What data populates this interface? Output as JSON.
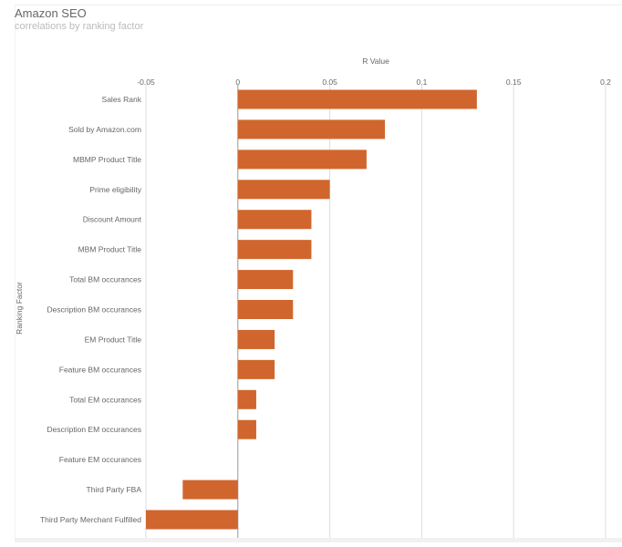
{
  "chart_data": {
    "type": "bar",
    "orientation": "horizontal",
    "title": "Amazon SEO",
    "subtitle": "correlations by ranking factor",
    "xlabel": "R Value",
    "ylabel": "Ranking Factor",
    "xlim": [
      -0.05,
      0.2
    ],
    "xticks": [
      "-0.05",
      "0",
      "0.05",
      "0.1",
      "0.15",
      "0.2"
    ],
    "xtick_values": [
      -0.05,
      0,
      0.05,
      0.1,
      0.15,
      0.2
    ],
    "grid": true,
    "legend": "none",
    "bar_color": "#d0662e",
    "categories": [
      "Sales Rank",
      "Sold by Amazon.com",
      "MBMP Product Title",
      "Prime eligibility",
      "Discount Amount",
      "MBM Product Title",
      "Total BM occurances",
      "Description BM occurances",
      "EM Product Title",
      "Feature BM occurances",
      "Total EM occurances",
      "Description EM occurances",
      "Feature EM occurances",
      "Third Party FBA",
      "Third Party Merchant Fulfilled"
    ],
    "values": [
      0.13,
      0.08,
      0.07,
      0.05,
      0.04,
      0.04,
      0.03,
      0.03,
      0.02,
      0.02,
      0.01,
      0.01,
      0,
      -0.03,
      -0.05
    ]
  }
}
